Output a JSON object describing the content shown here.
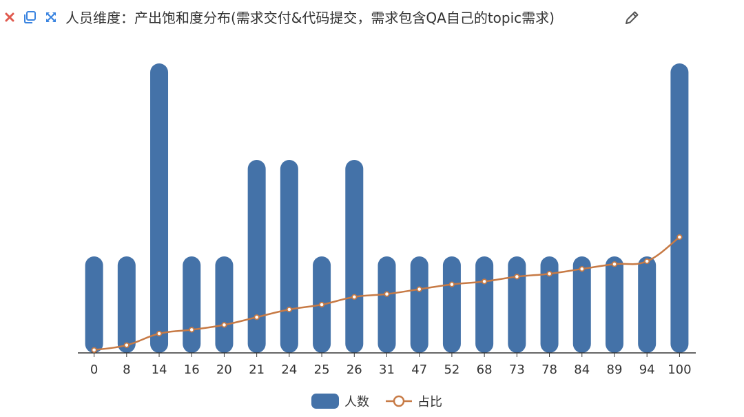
{
  "header": {
    "title": "人员维度：产出饱和度分布(需求交付&代码提交，需求包含QA自己的topic需求)",
    "icons": [
      "close-icon",
      "copy-icon",
      "expand-icon",
      "edit-icon"
    ]
  },
  "colors": {
    "bar": "#4472a8",
    "line": "#c77a45",
    "close": "#e05a4f",
    "toolbar": "#3a84e0",
    "axis": "#333333",
    "text": "#333333"
  },
  "chart_data": {
    "type": "bar",
    "categories": [
      "0",
      "8",
      "14",
      "16",
      "20",
      "21",
      "24",
      "25",
      "26",
      "31",
      "47",
      "52",
      "68",
      "73",
      "78",
      "84",
      "89",
      "94",
      "100"
    ],
    "series": [
      {
        "name": "人数",
        "type": "bar",
        "values": [
          1,
          1,
          3,
          1,
          1,
          2,
          2,
          1,
          2,
          1,
          1,
          1,
          1,
          1,
          1,
          1,
          1,
          1,
          3
        ]
      },
      {
        "name": "占比",
        "type": "line",
        "smooth": true,
        "values": [
          0.03,
          0.08,
          0.2,
          0.24,
          0.29,
          0.37,
          0.45,
          0.5,
          0.58,
          0.61,
          0.66,
          0.71,
          0.74,
          0.79,
          0.82,
          0.87,
          0.92,
          0.95,
          1.2
        ]
      }
    ],
    "ylim": [
      0,
      3
    ],
    "legend_position": "bottom-center",
    "grid": false
  }
}
